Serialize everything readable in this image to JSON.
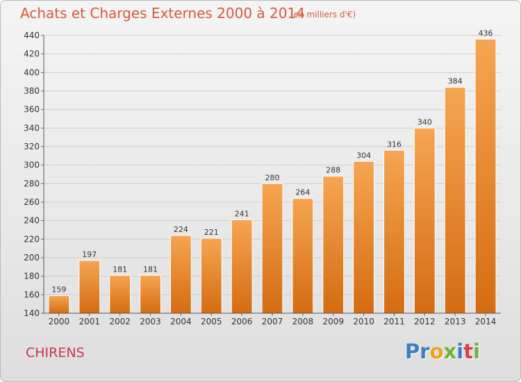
{
  "title": "Achats et Charges Externes 2000 à 2014",
  "subtitle": "(en milliers d'€)",
  "location": "CHIRENS",
  "logo": {
    "text": "Proxiti",
    "letters": [
      {
        "ch": "P",
        "color": "#3b7fc4"
      },
      {
        "ch": "r",
        "color": "#3b7fc4"
      },
      {
        "ch": "o",
        "color": "#f0a21b"
      },
      {
        "ch": "x",
        "color": "#6cb33f"
      },
      {
        "ch": "i",
        "color": "#3b7fc4"
      },
      {
        "ch": "t",
        "color": "#e23c3c"
      },
      {
        "ch": "i",
        "color": "#6cb33f"
      }
    ]
  },
  "chart_data": {
    "type": "bar",
    "title": "Achats et Charges Externes 2000 à 2014",
    "subtitle": "(en milliers d'€)",
    "categories": [
      "2000",
      "2001",
      "2002",
      "2003",
      "2004",
      "2005",
      "2006",
      "2007",
      "2008",
      "2009",
      "2010",
      "2011",
      "2012",
      "2013",
      "2014"
    ],
    "values": [
      159,
      197,
      181,
      181,
      224,
      221,
      241,
      280,
      264,
      288,
      304,
      316,
      340,
      384,
      436
    ],
    "ylim": [
      140,
      440
    ],
    "yticks": [
      140,
      160,
      180,
      200,
      220,
      240,
      260,
      280,
      300,
      320,
      340,
      360,
      380,
      400,
      420,
      440
    ],
    "grid": true,
    "bar_color": "#f39a3e",
    "bar_color_dark": "#d36b0f",
    "data_labels": true
  }
}
